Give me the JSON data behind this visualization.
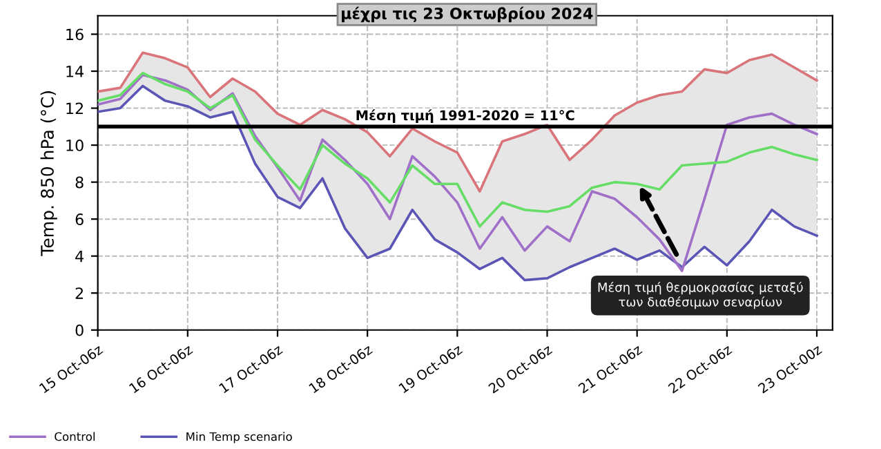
{
  "chart_data": {
    "type": "line",
    "title": "μέχρι τις 23 Οκτωβρίου 2024",
    "ylabel": "Temp. 850 hPa (°C)",
    "categories": [
      "15 Oct-06z",
      null,
      null,
      null,
      "16 Oct-06z",
      null,
      null,
      null,
      "17 Oct-06z",
      null,
      null,
      null,
      "18 Oct-06z",
      null,
      null,
      null,
      "19 Oct-06z",
      null,
      null,
      null,
      "20 Oct-06z",
      null,
      null,
      null,
      "21 Oct-06z",
      null,
      null,
      null,
      "22 Oct-06z",
      null,
      null,
      null,
      "23 Oct-00z"
    ],
    "ylim": [
      0,
      17
    ],
    "yticks": [
      0,
      2,
      4,
      6,
      8,
      10,
      12,
      14,
      16
    ],
    "grid": true,
    "legend": "bottom",
    "marker": "none",
    "line_style": "solid",
    "series": [
      {
        "color": "#d9757a",
        "values": [
          12.9,
          13.1,
          15.0,
          14.7,
          14.2,
          12.6,
          13.6,
          12.9,
          11.7,
          11.1,
          11.9,
          11.4,
          10.7,
          9.4,
          10.9,
          10.2,
          9.6,
          7.5,
          10.2,
          10.6,
          11.1,
          9.2,
          10.3,
          11.6,
          12.3,
          12.7,
          12.9,
          14.1,
          13.9,
          14.6,
          14.9,
          14.2,
          13.5
        ]
      },
      {
        "name": "Min Temp scenario",
        "color": "#5b55b5",
        "values": [
          11.8,
          12.0,
          13.2,
          12.4,
          12.1,
          11.5,
          11.8,
          9.0,
          7.2,
          6.6,
          8.2,
          5.5,
          3.9,
          4.4,
          6.5,
          4.9,
          4.2,
          3.3,
          3.9,
          2.7,
          2.8,
          3.4,
          3.9,
          4.4,
          3.8,
          4.3,
          3.4,
          4.5,
          3.5,
          4.8,
          6.5,
          5.6,
          5.1
        ]
      },
      {
        "name": "Control",
        "color": "#a070c8",
        "values": [
          12.2,
          12.5,
          13.8,
          13.5,
          13.0,
          11.9,
          12.8,
          10.5,
          8.8,
          7.0,
          10.3,
          9.2,
          7.9,
          6.0,
          9.4,
          8.3,
          6.9,
          4.4,
          6.1,
          4.3,
          5.6,
          4.8,
          7.5,
          7.1,
          6.1,
          4.9,
          3.2,
          7.1,
          11.1,
          11.5,
          11.7,
          11.1,
          10.6
        ]
      },
      {
        "color": "#66dd66",
        "values": [
          12.4,
          12.7,
          13.9,
          13.3,
          12.9,
          12.0,
          12.7,
          10.3,
          8.9,
          7.6,
          10.0,
          9.0,
          8.2,
          6.9,
          8.9,
          7.9,
          7.9,
          5.6,
          6.9,
          6.5,
          6.4,
          6.7,
          7.7,
          8.0,
          7.9,
          7.6,
          8.9,
          9.0,
          9.1,
          9.6,
          9.9,
          9.5,
          9.2
        ],
        "lower": [
          11.8,
          12.0,
          13.2,
          12.4,
          12.1,
          11.5,
          11.8,
          9.0,
          7.2,
          6.6,
          8.2,
          5.5,
          3.9,
          4.4,
          6.5,
          4.9,
          4.2,
          3.3,
          3.9,
          2.7,
          2.8,
          3.4,
          3.9,
          4.4,
          3.8,
          4.3,
          3.4,
          4.5,
          3.5,
          4.8,
          6.5,
          5.6,
          5.1
        ],
        "upper": [
          12.9,
          13.1,
          15.0,
          14.7,
          14.2,
          12.6,
          13.6,
          12.9,
          11.7,
          11.1,
          11.9,
          11.4,
          10.7,
          9.4,
          10.9,
          10.2,
          9.6,
          7.5,
          10.2,
          10.6,
          11.1,
          9.2,
          10.3,
          11.6,
          12.3,
          12.7,
          12.9,
          14.1,
          13.9,
          14.6,
          14.9,
          14.2,
          13.5
        ]
      }
    ],
    "ref_lines": [
      {
        "axis": "y",
        "value": 11,
        "label": "Μέση τιμή 1991-2020 = 11°C",
        "color": "#000000"
      }
    ],
    "annotations": [
      "Μέση τιμή θερμοκρασίας μεταξύ\nτων διαθέσιμων σεναρίων"
    ]
  }
}
